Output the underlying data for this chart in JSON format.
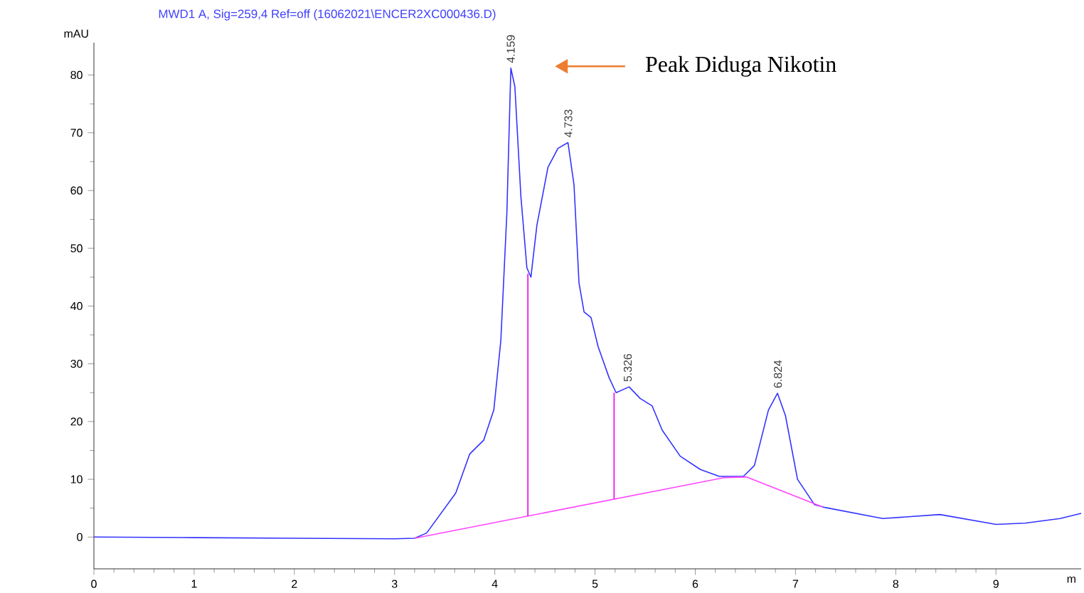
{
  "chart_data": {
    "type": "line",
    "title": "MWD1 A, Sig=259,4 Ref=off (16062021\\ENCER2XC000436.D)",
    "ylabel": "mAU",
    "xlabel": "m",
    "xlim": [
      0,
      9.85
    ],
    "ylim": [
      -5.5,
      85.6
    ],
    "xticks": [
      0,
      1,
      2,
      3,
      4,
      5,
      6,
      7,
      8,
      9
    ],
    "yticks": [
      0,
      10,
      20,
      30,
      40,
      50,
      60,
      70,
      80
    ],
    "grid": false,
    "marker": "none",
    "line_style": "solid",
    "series": [
      {
        "color": "#3333ff",
        "x": [
          0,
          1,
          2,
          3.0,
          3.2,
          3.32,
          3.61,
          3.75,
          3.89,
          3.99,
          4.06,
          4.12,
          4.16,
          4.2,
          4.26,
          4.32,
          4.36,
          4.42,
          4.53,
          4.63,
          4.73,
          4.79,
          4.84,
          4.89,
          4.96,
          5.03,
          5.14,
          5.21,
          5.34,
          5.45,
          5.57,
          5.67,
          5.85,
          6.05,
          6.24,
          6.48,
          6.59,
          6.73,
          6.82,
          6.9,
          7.02,
          7.19,
          7.3,
          7.87,
          8.44,
          9.0,
          9.29,
          9.64,
          9.85
        ],
        "values": [
          0,
          -0.1,
          -0.2,
          -0.3,
          -0.2,
          0.7,
          7.6,
          14.4,
          16.8,
          22,
          34,
          56,
          81.2,
          78,
          59,
          46.6,
          45,
          54,
          64,
          67.3,
          68.3,
          61,
          44,
          39,
          38,
          33,
          27.6,
          25,
          26,
          24,
          22.7,
          18.5,
          14,
          11.7,
          10.5,
          10.5,
          12.4,
          22,
          24.9,
          21,
          10,
          5.6,
          5.1,
          3.2,
          3.9,
          2.2,
          2.4,
          3.2,
          4.1
        ]
      },
      {
        "color": "#ff44ff",
        "x": [
          3.2,
          6.29,
          6.51,
          7.27
        ],
        "values": [
          -0.2,
          10.3,
          10.4,
          5.2
        ]
      },
      {
        "color": "#ee00ee",
        "x": [
          4.33,
          4.33
        ],
        "values": [
          3.6,
          45.6
        ]
      },
      {
        "color": "#ee00ee",
        "x": [
          5.19,
          5.19
        ],
        "values": [
          6.6,
          25
        ]
      }
    ],
    "annotations": [
      {
        "text": "4.159",
        "x": 4.159,
        "y": 81.2
      },
      {
        "text": "4.733",
        "x": 4.733,
        "y": 68.3
      },
      {
        "text": "5.326",
        "x": 5.326,
        "y": 26
      },
      {
        "text": "6.824",
        "x": 6.824,
        "y": 24.9
      },
      "Peak Diduga Nikotin"
    ]
  }
}
